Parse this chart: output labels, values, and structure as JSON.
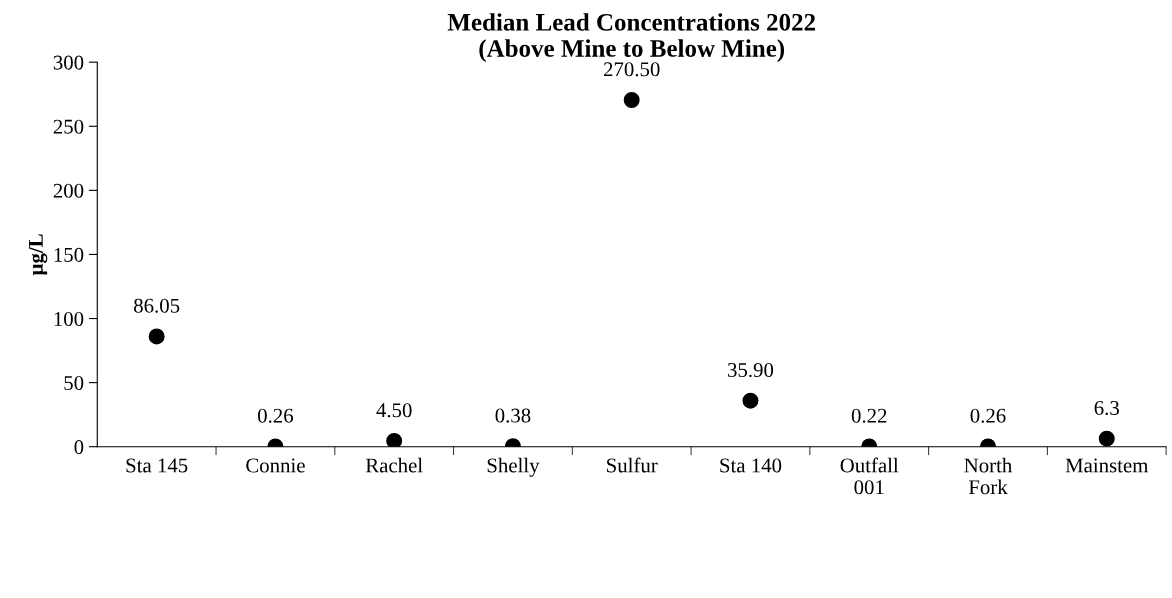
{
  "chart_data": {
    "type": "scatter",
    "title": "Median Lead Concentrations 2022\n(Above Mine to Below Mine)",
    "ylabel": "µg/L",
    "categories": [
      "Sta 145",
      "Connie",
      "Rachel",
      "Shelly",
      "Sulfur",
      "Sta 140",
      "Outfall\n001",
      "North\nFork",
      "Mainstem"
    ],
    "values": [
      86.05,
      0.26,
      4.5,
      0.38,
      270.5,
      35.9,
      0.22,
      0.26,
      6.3
    ],
    "value_labels": [
      "86.05",
      "0.26",
      "4.50",
      "0.38",
      "270.50",
      "35.90",
      "0.22",
      "0.26",
      "6.3"
    ],
    "color": "#000000",
    "marker": "circle",
    "grid": false,
    "legend": false,
    "ylim": [
      0,
      300
    ],
    "yticks": [
      0,
      50,
      100,
      150,
      200,
      250,
      300
    ]
  }
}
